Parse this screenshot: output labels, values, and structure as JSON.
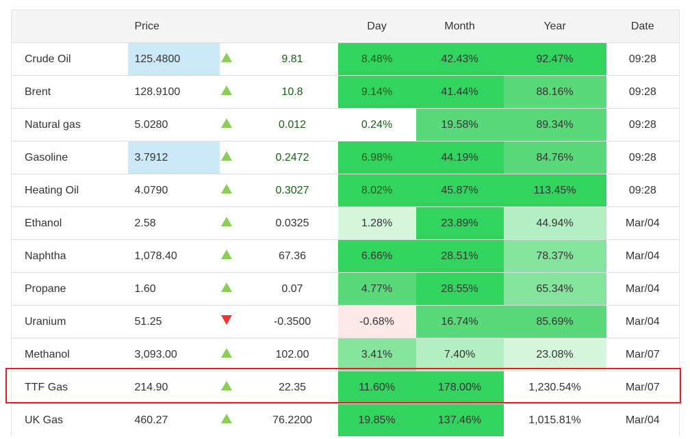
{
  "header": {
    "name": "",
    "price": "Price",
    "arrow": "",
    "change": "",
    "day": "Day",
    "month": "Month",
    "year": "Year",
    "date": "Date"
  },
  "colors": {
    "strong": "#33d35f",
    "medium": "#5ad97a",
    "light": "#84e49e",
    "lighter": "#b3efc3",
    "lightest": "#d5f5dd",
    "negative": "#fde8e8",
    "price_highlight": "#cce8f6",
    "up_arrow": "#8bcc5a",
    "down_arrow": "#e33333",
    "selection_box": "#e21d1d"
  },
  "rows": [
    {
      "name": "Crude Oil",
      "price": "125.4800",
      "price_highlight": true,
      "direction": "up",
      "change": "9.81",
      "green_text": true,
      "day": "8.48%",
      "day_level": "c4",
      "month": "42.43%",
      "month_level": "c4",
      "year": "92.47%",
      "year_level": "c4",
      "date": "09:28"
    },
    {
      "name": "Brent",
      "price": "128.9100",
      "direction": "up",
      "change": "10.8",
      "green_text": true,
      "day": "9.14%",
      "day_level": "c4",
      "month": "41.44%",
      "month_level": "c4",
      "year": "88.16%",
      "year_level": "c3",
      "date": "09:28"
    },
    {
      "name": "Natural gas",
      "price": "5.0280",
      "direction": "up",
      "change": "0.012",
      "green_text": true,
      "day": "0.24%",
      "day_level": "none",
      "month": "19.58%",
      "month_level": "c3",
      "year": "89.34%",
      "year_level": "c3",
      "date": "09:28"
    },
    {
      "name": "Gasoline",
      "price": "3.7912",
      "price_highlight": true,
      "direction": "up",
      "change": "0.2472",
      "green_text": true,
      "day": "6.98%",
      "day_level": "c4",
      "month": "44.19%",
      "month_level": "c4",
      "year": "84.76%",
      "year_level": "c3",
      "date": "09:28"
    },
    {
      "name": "Heating Oil",
      "price": "4.0790",
      "direction": "up",
      "change": "0.3027",
      "green_text": true,
      "day": "8.02%",
      "day_level": "c4",
      "month": "45.87%",
      "month_level": "c4",
      "year": "113.45%",
      "year_level": "c4",
      "date": "09:28"
    },
    {
      "name": "Ethanol",
      "price": "2.58",
      "direction": "up",
      "change": "0.0325",
      "day": "1.28%",
      "day_level": "c0",
      "month": "23.89%",
      "month_level": "c4",
      "year": "44.94%",
      "year_level": "c1",
      "date": "Mar/04"
    },
    {
      "name": "Naphtha",
      "price": "1,078.40",
      "direction": "up",
      "change": "67.36",
      "day": "6.66%",
      "day_level": "c4",
      "month": "28.51%",
      "month_level": "c4",
      "year": "78.37%",
      "year_level": "c2",
      "date": "Mar/04"
    },
    {
      "name": "Propane",
      "price": "1.60",
      "direction": "up",
      "change": "0.07",
      "day": "4.77%",
      "day_level": "c3",
      "month": "28.55%",
      "month_level": "c4",
      "year": "65.34%",
      "year_level": "c2",
      "date": "Mar/04"
    },
    {
      "name": "Uranium",
      "price": "51.25",
      "direction": "down",
      "change": "-0.3500",
      "day": "-0.68%",
      "day_level": "neg",
      "month": "16.74%",
      "month_level": "c3",
      "year": "85.69%",
      "year_level": "c3",
      "date": "Mar/04"
    },
    {
      "name": "Methanol",
      "price": "3,093.00",
      "direction": "up",
      "change": "102.00",
      "day": "3.41%",
      "day_level": "c2",
      "month": "7.40%",
      "month_level": "c1",
      "year": "23.08%",
      "year_level": "c0",
      "date": "Mar/07"
    },
    {
      "name": "TTF Gas",
      "price": "214.90",
      "direction": "up",
      "change": "22.35",
      "day": "11.60%",
      "day_level": "c4",
      "month": "178.00%",
      "month_level": "c4",
      "year": "1,230.54%",
      "year_level": "none",
      "date": "Mar/07",
      "selected": true
    },
    {
      "name": "UK Gas",
      "price": "460.27",
      "direction": "up",
      "change": "76.2200",
      "day": "19.85%",
      "day_level": "c4",
      "month": "137.46%",
      "month_level": "c4",
      "year": "1,015.81%",
      "year_level": "none",
      "date": "Mar/04"
    }
  ]
}
